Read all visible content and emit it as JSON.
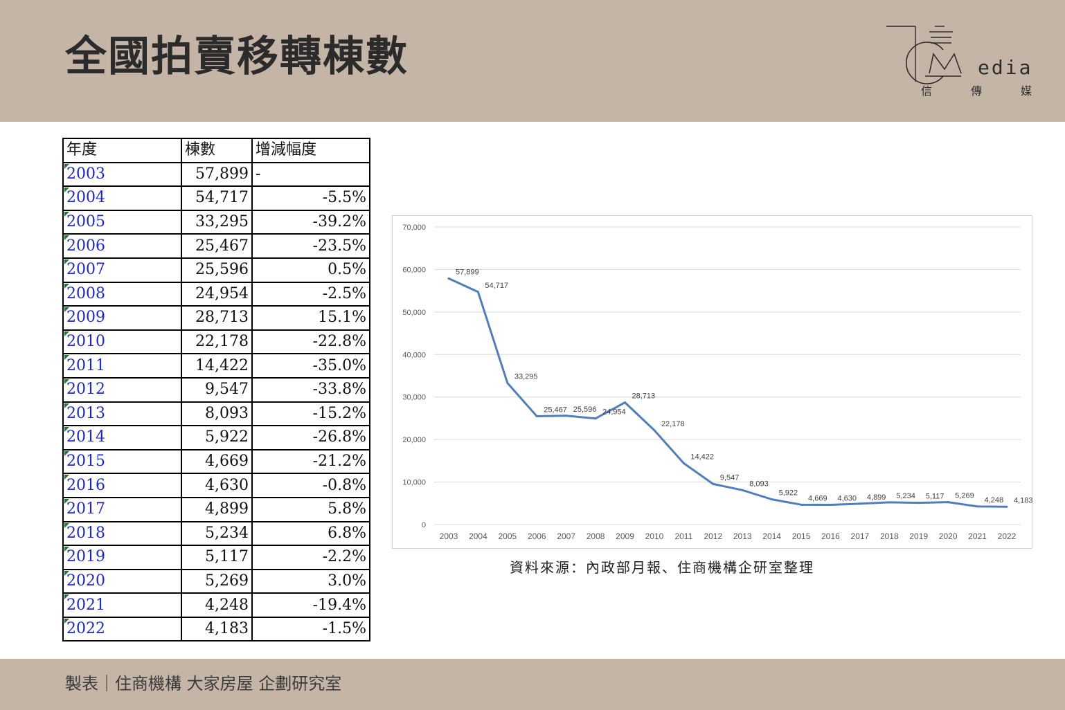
{
  "header": {
    "title": "全國拍賣移轉棟數",
    "logo": {
      "word": "edia",
      "sub": [
        "信",
        "傳",
        "媒"
      ]
    }
  },
  "table": {
    "headers": [
      "年度",
      "棟數",
      "增減幅度"
    ],
    "rows": [
      {
        "year": "2003",
        "count": "57,899",
        "change": "-",
        "bold": false
      },
      {
        "year": "2004",
        "count": "54,717",
        "change": "-5.5%",
        "bold": false
      },
      {
        "year": "2005",
        "count": "33,295",
        "change": "-39.2%",
        "bold": false
      },
      {
        "year": "2006",
        "count": "25,467",
        "change": "-23.5%",
        "bold": true
      },
      {
        "year": "2007",
        "count": "25,596",
        "change": "0.5%",
        "bold": false
      },
      {
        "year": "2008",
        "count": "24,954",
        "change": "-2.5%",
        "bold": false
      },
      {
        "year": "2009",
        "count": "28,713",
        "change": "15.1%",
        "bold": false
      },
      {
        "year": "2010",
        "count": "22,178",
        "change": "-22.8%",
        "bold": false
      },
      {
        "year": "2011",
        "count": "14,422",
        "change": "-35.0%",
        "bold": true
      },
      {
        "year": "2012",
        "count": "9,547",
        "change": "-33.8%",
        "bold": false
      },
      {
        "year": "2013",
        "count": "8,093",
        "change": "-15.2%",
        "bold": false
      },
      {
        "year": "2014",
        "count": "5,922",
        "change": "-26.8%",
        "bold": false
      },
      {
        "year": "2015",
        "count": "4,669",
        "change": "-21.2%",
        "bold": false
      },
      {
        "year": "2016",
        "count": "4,630",
        "change": "-0.8%",
        "bold": true
      },
      {
        "year": "2017",
        "count": "4,899",
        "change": "5.8%",
        "bold": false
      },
      {
        "year": "2018",
        "count": "5,234",
        "change": "6.8%",
        "bold": false
      },
      {
        "year": "2019",
        "count": "5,117",
        "change": "-2.2%",
        "bold": false
      },
      {
        "year": "2020",
        "count": "5,269",
        "change": "3.0%",
        "bold": true
      },
      {
        "year": "2021",
        "count": "4,248",
        "change": "-19.4%",
        "bold": true
      },
      {
        "year": "2022",
        "count": "4,183",
        "change": "-1.5%",
        "bold": true
      }
    ]
  },
  "chart_data": {
    "type": "line",
    "x": [
      "2003",
      "2004",
      "2005",
      "2006",
      "2007",
      "2008",
      "2009",
      "2010",
      "2011",
      "2012",
      "2013",
      "2014",
      "2015",
      "2016",
      "2017",
      "2018",
      "2019",
      "2020",
      "2021",
      "2022"
    ],
    "series": [
      {
        "values": [
          57899,
          54717,
          33295,
          25467,
          25596,
          24954,
          28713,
          22178,
          14422,
          9547,
          8093,
          5922,
          4669,
          4630,
          4899,
          5234,
          5117,
          5269,
          4248,
          4183
        ],
        "labels": [
          "57,899",
          "54,717",
          "33,295",
          "25,467",
          "25,596",
          "24,954",
          "28,713",
          "22,178",
          "14,422",
          "9,547",
          "8,093",
          "5,922",
          "4,669",
          "4,630",
          "4,899",
          "5,234",
          "5,117",
          "5,269",
          "4,248",
          "4,183"
        ]
      }
    ],
    "yticks": [
      0,
      10000,
      20000,
      30000,
      40000,
      50000,
      60000,
      70000
    ],
    "ytick_labels": [
      "0",
      "10,000",
      "20,000",
      "30,000",
      "40,000",
      "50,000",
      "60,000",
      "70,000"
    ],
    "ylim": [
      0,
      70000
    ],
    "grid": true,
    "line_color": "#4f7dbf"
  },
  "source": "資料來源：內政部月報、住商機構企研室整理",
  "footer": "製表｜住商機構 大家房屋 企劃研究室"
}
